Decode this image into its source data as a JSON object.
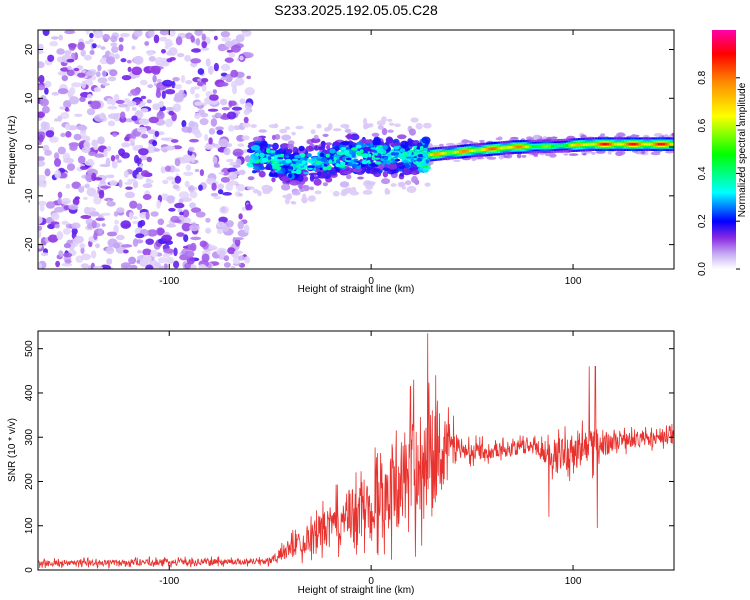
{
  "title": "S233.2025.192.05.05.C28",
  "colors": {
    "snr_line": "#e8322e",
    "axis": "#000000",
    "colormap": [
      "#ffffff",
      "#c9b0f5",
      "#8a2be2",
      "#0000ff",
      "#00ffff",
      "#00ff00",
      "#ffff00",
      "#ff8c00",
      "#ff0000",
      "#ff00aa"
    ]
  },
  "chart_data": [
    {
      "type": "heatmap",
      "xlabel": "Height of straight line (km)",
      "ylabel": "Frequency (Hz)",
      "xlim": [
        -165,
        150
      ],
      "ylim": [
        -25,
        24
      ],
      "x_ticks": [
        -100,
        0,
        100
      ],
      "y_ticks": [
        -20,
        -10,
        0,
        10,
        20
      ],
      "colorbar": {
        "label": "Normalized spectral amplitude",
        "range": [
          0.0,
          1.0
        ],
        "ticks": [
          "0.0",
          "0.2",
          "0.4",
          "0.6",
          "0.8"
        ]
      },
      "noise_region_x": [
        -165,
        -60
      ],
      "signal_band": [
        {
          "x": -55,
          "freq": -2.0,
          "amp": 0.35
        },
        {
          "x": -40,
          "freq": -4.0,
          "amp": 0.3
        },
        {
          "x": -20,
          "freq": -2.5,
          "amp": 0.3
        },
        {
          "x": 0,
          "freq": -1.5,
          "amp": 0.32
        },
        {
          "x": 20,
          "freq": -2.0,
          "amp": 0.3
        },
        {
          "x": 30,
          "freq": -1.5,
          "amp": 0.75
        },
        {
          "x": 50,
          "freq": -0.7,
          "amp": 0.8
        },
        {
          "x": 70,
          "freq": 0.0,
          "amp": 0.85
        },
        {
          "x": 90,
          "freq": 0.2,
          "amp": 0.5
        },
        {
          "x": 110,
          "freq": 0.6,
          "amp": 0.9
        },
        {
          "x": 150,
          "freq": 0.6,
          "amp": 0.9
        }
      ]
    },
    {
      "type": "line",
      "xlabel": "Height of straight line (km)",
      "ylabel": "SNR (10 * v/v)",
      "xlim": [
        -165,
        150
      ],
      "ylim": [
        0,
        540
      ],
      "x_ticks": [
        -100,
        0,
        100
      ],
      "y_ticks": [
        0,
        100,
        200,
        300,
        400,
        500
      ],
      "series": [
        {
          "envelope_points": [
            {
              "x": -165,
              "base": 15,
              "spread": 12
            },
            {
              "x": -50,
              "base": 20,
              "spread": 12
            },
            {
              "x": -40,
              "base": 50,
              "spread": 40
            },
            {
              "x": -20,
              "base": 100,
              "spread": 80
            },
            {
              "x": 0,
              "base": 150,
              "spread": 130
            },
            {
              "x": 15,
              "base": 200,
              "spread": 180
            },
            {
              "x": 25,
              "base": 250,
              "spread": 220
            },
            {
              "x": 35,
              "base": 290,
              "spread": 120
            },
            {
              "x": 45,
              "base": 270,
              "spread": 40
            },
            {
              "x": 60,
              "base": 270,
              "spread": 30
            },
            {
              "x": 80,
              "base": 280,
              "spread": 30
            },
            {
              "x": 90,
              "base": 260,
              "spread": 60
            },
            {
              "x": 110,
              "base": 280,
              "spread": 80
            },
            {
              "x": 120,
              "base": 290,
              "spread": 35
            },
            {
              "x": 150,
              "base": 300,
              "spread": 30
            }
          ],
          "peaks": [
            {
              "x": 21,
              "y": 430
            },
            {
              "x": 28,
              "y": 535
            },
            {
              "x": 32,
              "y": 440
            },
            {
              "x": 108,
              "y": 460
            },
            {
              "x": 111,
              "y": 460
            },
            {
              "x": 88,
              "y": 120
            },
            {
              "x": 112,
              "y": 95
            }
          ]
        }
      ]
    }
  ]
}
